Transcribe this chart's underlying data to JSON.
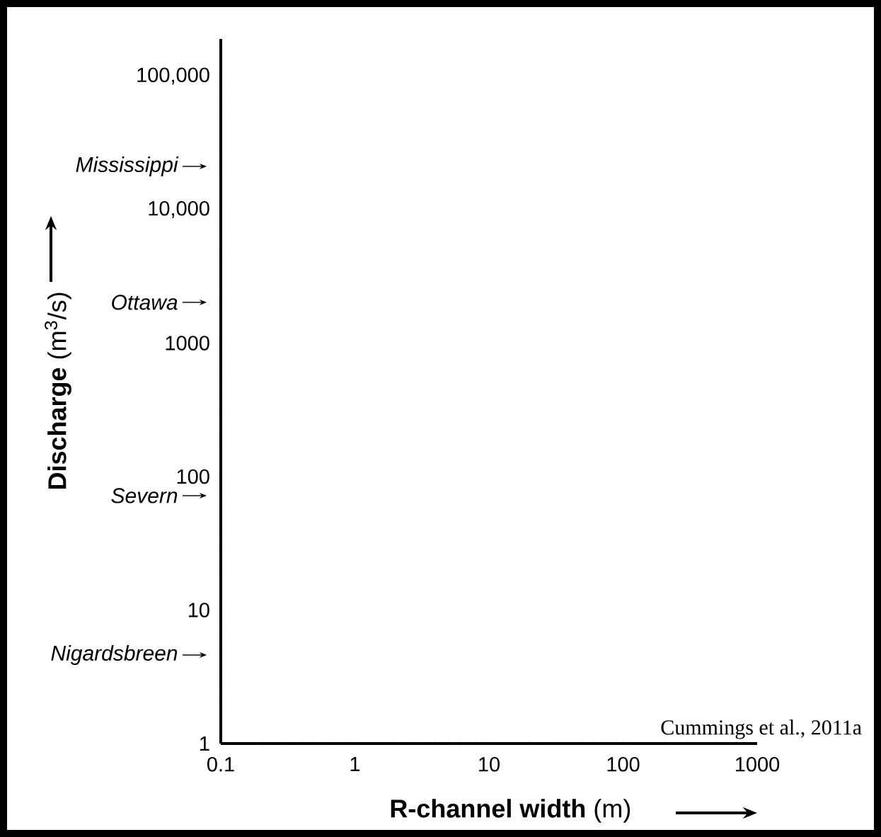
{
  "chart_data": {
    "type": "scatter",
    "xlabel": "**R-channel width** (m)",
    "ylabel": "**Discharge** (m$^{3}$/s)",
    "log": "xy",
    "xlim": [
      0.1,
      1000
    ],
    "xticks": [
      0.1,
      1,
      10,
      100,
      1000
    ],
    "ylim": [
      1,
      190000
    ],
    "yticks": [
      1,
      10,
      100,
      1000,
      {
        "value": 10000,
        "label": "10,000"
      },
      {
        "value": 100000,
        "label": "100,000"
      }
    ],
    "grid": false,
    "annotations": [
      "Mississippi",
      "Ottawa",
      "Severn",
      "Nigardsbreen",
      "Cummings et al., 2011a"
    ]
  }
}
